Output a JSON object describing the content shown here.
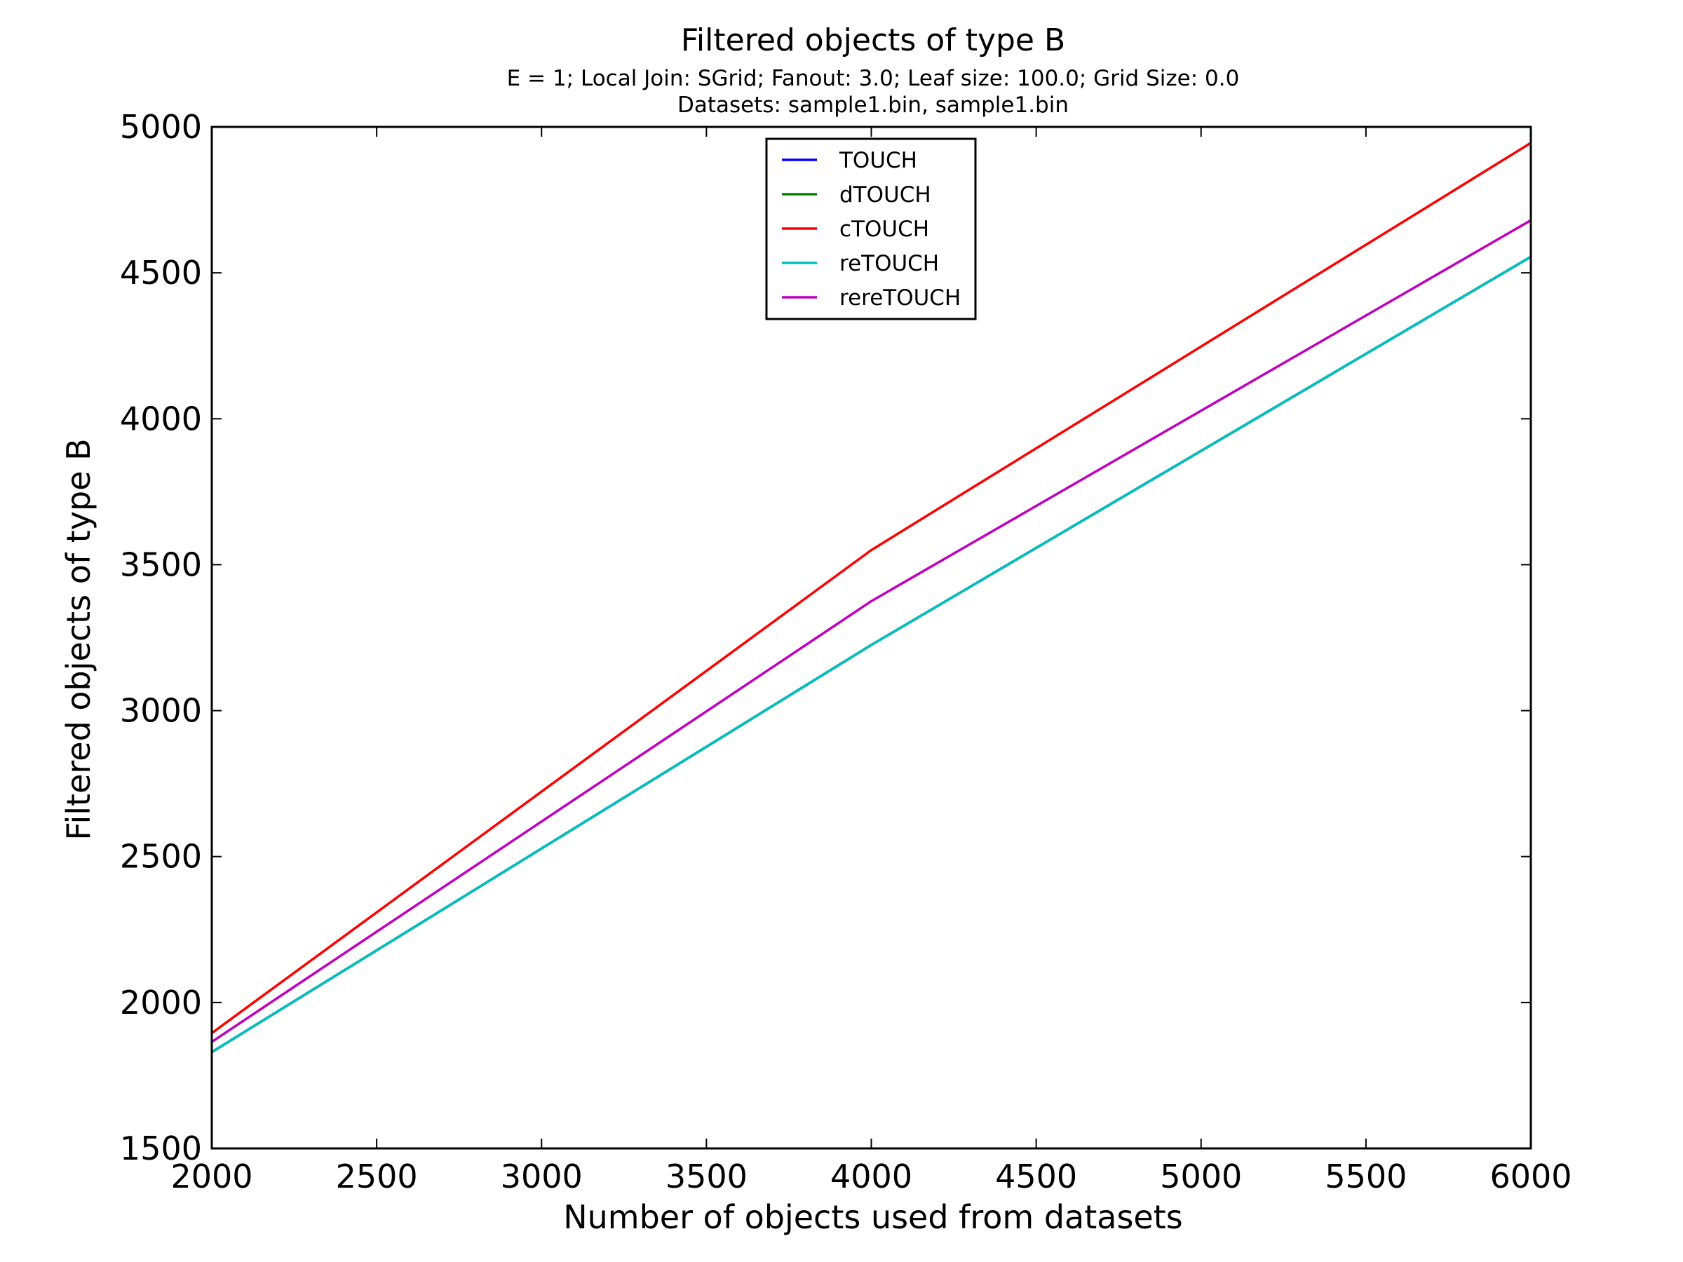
{
  "chart_data": {
    "type": "line",
    "title": "Filtered objects of type B",
    "subtitle_lines": [
      "E = 1; Local Join: SGrid; Fanout: 3.0; Leaf size: 100.0; Grid Size: 0.0",
      "Datasets: sample1.bin, sample1.bin"
    ],
    "xlabel": "Number of objects used from datasets",
    "ylabel": "Filtered objects of type B",
    "xlim": [
      2000,
      6000
    ],
    "ylim": [
      1500,
      5000
    ],
    "xticks": [
      2000,
      2500,
      3000,
      3500,
      4000,
      4500,
      5000,
      5500,
      6000
    ],
    "yticks": [
      1500,
      2000,
      2500,
      3000,
      3500,
      4000,
      4500,
      5000
    ],
    "x": [
      2000,
      4000,
      6000
    ],
    "legend_position": "top-center",
    "grid": false,
    "series": [
      {
        "name": "TOUCH",
        "color": "#0000ff",
        "values": [
          1830,
          3225,
          4555
        ]
      },
      {
        "name": "dTOUCH",
        "color": "#008000",
        "values": [
          1830,
          3225,
          4555
        ]
      },
      {
        "name": "cTOUCH",
        "color": "#ff0000",
        "values": [
          1895,
          3550,
          4945
        ]
      },
      {
        "name": "reTOUCH",
        "color": "#00bfbf",
        "values": [
          1830,
          3225,
          4555
        ]
      },
      {
        "name": "rereTOUCH",
        "color": "#bf00bf",
        "values": [
          1865,
          3375,
          4680
        ]
      }
    ]
  }
}
